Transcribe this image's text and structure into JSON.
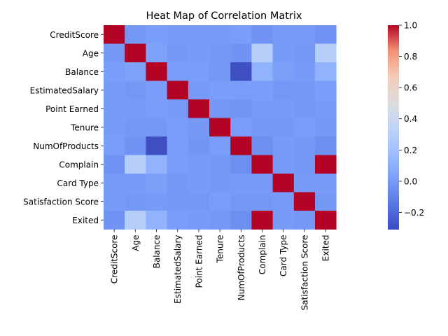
{
  "chart_data": {
    "type": "heatmap",
    "title": "Heat Map of Correlation Matrix",
    "xlabel": "",
    "ylabel": "",
    "labels": [
      "CreditScore",
      "Age",
      "Balance",
      "EstimatedSalary",
      "Point Earned",
      "Tenure",
      "NumOfProducts",
      "Complain",
      "Card Type",
      "Satisfaction Score",
      "Exited"
    ],
    "matrix": [
      [
        1.0,
        -0.01,
        0.01,
        -0.0,
        0.0,
        0.0,
        0.01,
        -0.03,
        -0.0,
        -0.0,
        -0.03
      ],
      [
        -0.01,
        1.0,
        0.03,
        -0.01,
        0.0,
        -0.01,
        -0.03,
        0.29,
        0.0,
        -0.01,
        0.29
      ],
      [
        0.01,
        0.03,
        1.0,
        0.01,
        0.01,
        -0.01,
        -0.3,
        0.12,
        0.02,
        0.0,
        0.12
      ],
      [
        -0.0,
        -0.01,
        0.01,
        1.0,
        -0.0,
        0.01,
        0.01,
        0.01,
        -0.01,
        -0.01,
        0.01
      ],
      [
        0.0,
        0.0,
        0.01,
        -0.0,
        1.0,
        -0.01,
        -0.02,
        -0.0,
        0.0,
        -0.01,
        -0.0
      ],
      [
        0.0,
        -0.01,
        -0.01,
        0.01,
        -0.01,
        1.0,
        0.01,
        -0.01,
        -0.01,
        0.01,
        -0.01
      ],
      [
        0.01,
        -0.03,
        -0.3,
        0.01,
        -0.02,
        0.01,
        1.0,
        -0.05,
        0.0,
        -0.01,
        -0.05
      ],
      [
        -0.03,
        0.29,
        0.12,
        0.01,
        -0.0,
        -0.01,
        -0.05,
        1.0,
        0.0,
        -0.01,
        1.0
      ],
      [
        -0.0,
        0.0,
        0.02,
        -0.01,
        0.0,
        -0.01,
        0.0,
        0.0,
        1.0,
        -0.0,
        0.0
      ],
      [
        -0.0,
        -0.01,
        0.0,
        -0.01,
        -0.01,
        0.01,
        -0.01,
        -0.01,
        -0.0,
        1.0,
        -0.01
      ],
      [
        -0.03,
        0.29,
        0.12,
        0.01,
        -0.0,
        -0.01,
        -0.05,
        1.0,
        0.0,
        -0.01,
        1.0
      ]
    ],
    "vmin": -0.31,
    "vmax": 1.0,
    "colormap": "coolwarm",
    "colorbar_ticks": [
      {
        "value": 1.0,
        "label": "1.0"
      },
      {
        "value": 0.8,
        "label": "0.8"
      },
      {
        "value": 0.6,
        "label": "0.6"
      },
      {
        "value": 0.4,
        "label": "0.4"
      },
      {
        "value": 0.2,
        "label": "0.2"
      },
      {
        "value": 0.0,
        "label": "0.0"
      },
      {
        "value": -0.2,
        "label": "−0.2"
      }
    ]
  }
}
